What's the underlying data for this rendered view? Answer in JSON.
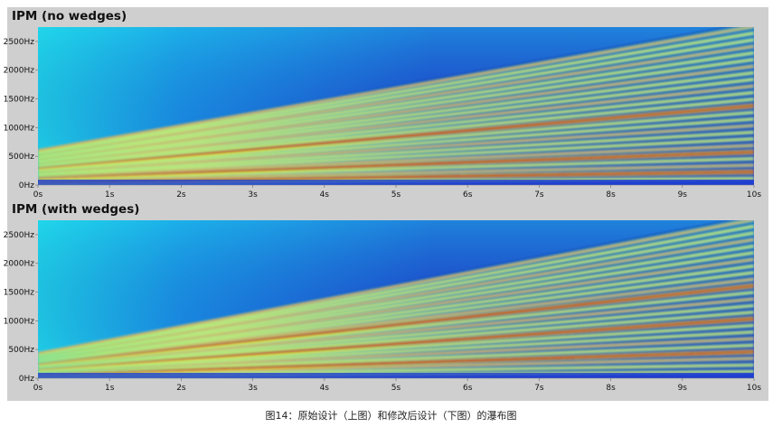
{
  "caption": "图14：原始设计（上图）和修改后设计（下图）的瀑布图",
  "colors": {
    "background": "#cfcfcf",
    "colormap": [
      "#0b1a8c",
      "#1f3fd0",
      "#1a8fe8",
      "#20d6ea",
      "#6de8b0",
      "#e6ec3c",
      "#f7a21e",
      "#e3321c",
      "#c8141a"
    ]
  },
  "chart_data": [
    {
      "type": "heatmap",
      "title": "IPM (no wedges)",
      "x_ticks": [
        "0s",
        "1s",
        "2s",
        "3s",
        "4s",
        "5s",
        "6s",
        "7s",
        "8s",
        "9s",
        "10s"
      ],
      "y_ticks": [
        "0Hz",
        "500Hz",
        "1000Hz",
        "1500Hz",
        "2000Hz",
        "2500Hz"
      ],
      "xlim": [
        0,
        10
      ],
      "ylim": [
        0,
        2750
      ],
      "harmonic_lines": {
        "count": 24,
        "frequency_at_0s_base_hz": 25,
        "frequency_at_10s_base_hz": 115,
        "strong_orders": [
          2,
          5,
          12
        ]
      }
    },
    {
      "type": "heatmap",
      "title": "IPM (with wedges)",
      "x_ticks": [
        "0s",
        "1s",
        "2s",
        "3s",
        "4s",
        "5s",
        "6s",
        "7s",
        "8s",
        "9s",
        "10s"
      ],
      "y_ticks": [
        "0Hz",
        "500Hz",
        "1000Hz",
        "1500Hz",
        "2000Hz",
        "2500Hz"
      ],
      "xlim": [
        0,
        10
      ],
      "ylim": [
        0,
        2750
      ],
      "harmonic_lines": {
        "count": 24,
        "frequency_at_0s_base_hz": 18,
        "frequency_at_10s_base_hz": 115,
        "strong_orders": [
          4,
          9,
          14
        ]
      }
    }
  ]
}
